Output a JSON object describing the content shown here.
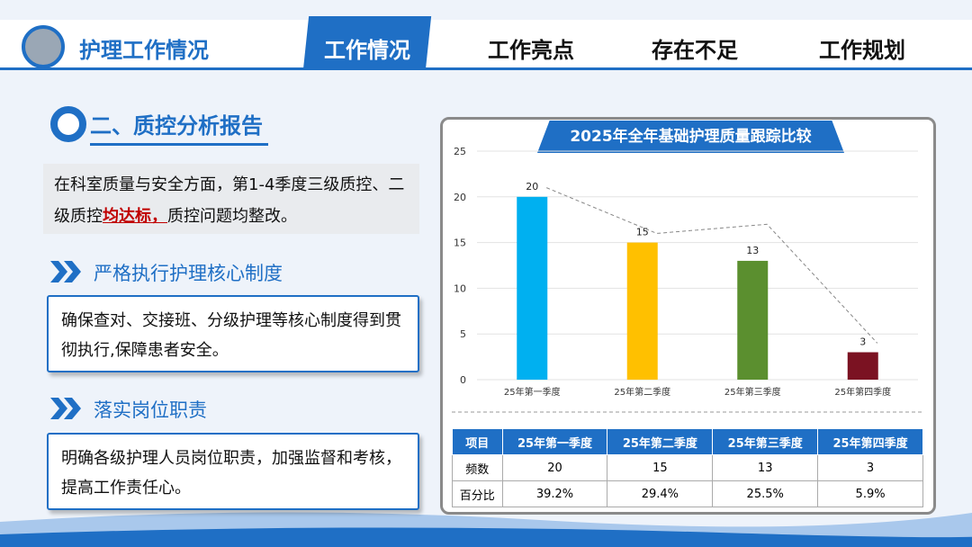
{
  "header": {
    "title": "护理工作情况",
    "tabs": [
      "工作情况",
      "工作亮点",
      "存在不足",
      "工作规划"
    ]
  },
  "section": {
    "title": "二、质控分析报告",
    "summary": [
      "在科室质量与安全方面，第1-4季度三级质控、二级质控",
      "均达标，",
      "质控问题均整改。"
    ],
    "items": [
      {
        "title": "严格执行护理核心制度",
        "text": "确保查对、交接班、分级护理等核心制度得到贯彻执行,保障患者安全。"
      },
      {
        "title": "落实岗位职责",
        "text": "明确各级护理人员岗位职责，加强监督和考核，提高工作责任心。"
      }
    ]
  },
  "chart_data": {
    "type": "bar",
    "title": "2025年全年基础护理质量跟踪比较",
    "categories": [
      "25年第一季度",
      "25年第二季度",
      "25年第三季度",
      "25年第四季度"
    ],
    "values": [
      20,
      15,
      13,
      3
    ],
    "colors": [
      "#00b0f0",
      "#ffc000",
      "#5b8f2f",
      "#7b1222"
    ],
    "trend": [
      21,
      16,
      17,
      4
    ],
    "trend_color": "#888888",
    "ylim": [
      0,
      25
    ],
    "yticks": [
      0,
      5,
      10,
      15,
      20,
      25
    ],
    "grid": true
  },
  "table": {
    "header": [
      "项目",
      "25年第一季度",
      "25年第二季度",
      "25年第三季度",
      "25年第四季度"
    ],
    "rows": [
      [
        "频数",
        "20",
        "15",
        "13",
        "3"
      ],
      [
        "百分比",
        "39.2%",
        "29.4%",
        "25.5%",
        "5.9%"
      ]
    ]
  }
}
